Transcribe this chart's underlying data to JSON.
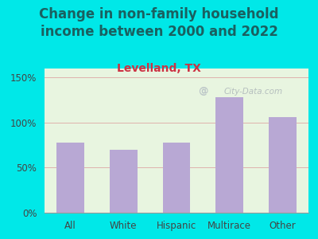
{
  "title": "Change in non-family household\nincome between 2000 and 2022",
  "subtitle": "Levelland, TX",
  "categories": [
    "All",
    "White",
    "Hispanic",
    "Multirace",
    "Other"
  ],
  "values": [
    78,
    70,
    78,
    128,
    106
  ],
  "bar_color": "#b8a8d4",
  "title_fontsize": 12,
  "subtitle_fontsize": 10,
  "subtitle_color": "#cc3344",
  "title_color": "#1a6060",
  "background_outer": "#00e8e8",
  "background_plot_top": "#e8f5e0",
  "background_plot_bottom": "#f0faf0",
  "ylim": [
    0,
    160
  ],
  "yticks": [
    0,
    50,
    100,
    150
  ],
  "grid_color": "#dda0a0",
  "watermark": "City-Data.com"
}
